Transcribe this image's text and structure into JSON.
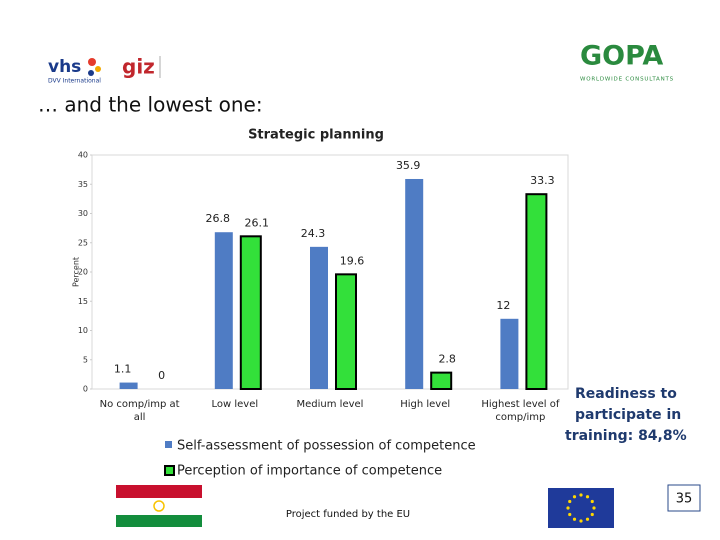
{
  "header": {
    "logo_left": "vhs",
    "logo_left_sub": "DVV International",
    "logo_mid": "giz",
    "logo_right": "GOPA",
    "logo_right_sub": "WORLDWIDE CONSULTANTS"
  },
  "heading": "… and the lowest one:",
  "chart_data": {
    "type": "bar",
    "title": "Strategic planning",
    "y_label": "Percent",
    "categories": [
      "No comp/imp at all",
      "Low level",
      "Medium level",
      "High level",
      "Highest level of comp/imp"
    ],
    "series": [
      {
        "name": "Self-assessment of possession of competence",
        "color": "#4f7cc4",
        "values": [
          1.1,
          26.8,
          24.3,
          35.9,
          12
        ]
      },
      {
        "name": "Perception of importance of competence",
        "color": "#33e03a",
        "values": [
          0,
          26.1,
          19.6,
          2.8,
          33.3
        ]
      }
    ],
    "ylim": [
      0,
      40
    ],
    "yticks": [
      0,
      5,
      10,
      15,
      20,
      25,
      30,
      35,
      40
    ],
    "grid": false
  },
  "note": [
    "Readiness to",
    "participate in",
    "training: 84,8%"
  ],
  "footer": "Project funded by the EU",
  "page_number": "35"
}
